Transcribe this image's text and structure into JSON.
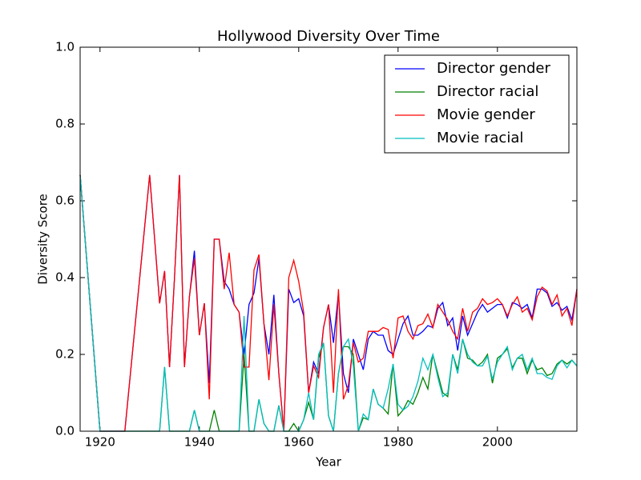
{
  "chart_data": {
    "type": "line",
    "title": "Hollywood Diversity Over Time",
    "x_label": "Year",
    "y_label": "Diversity Score",
    "xlim": [
      1916,
      2016
    ],
    "ylim": [
      0,
      1
    ],
    "xticks": [
      1920,
      1940,
      1960,
      1980,
      2000
    ],
    "yticks": [
      {
        "value": 0,
        "label": "0.0"
      },
      {
        "value": 0.2,
        "label": "0.2"
      },
      {
        "value": 0.4,
        "label": "0.4"
      },
      {
        "value": 0.6,
        "label": "0.6"
      },
      {
        "value": 0.8,
        "label": "0.8"
      },
      {
        "value": 1,
        "label": "1.0"
      }
    ],
    "legend": "upper right",
    "x": [
      1916,
      1920,
      1925,
      1930,
      1931,
      1932,
      1933,
      1934,
      1935,
      1936,
      1937,
      1938,
      1939,
      1940,
      1941,
      1942,
      1943,
      1944,
      1945,
      1946,
      1947,
      1948,
      1949,
      1950,
      1951,
      1952,
      1953,
      1954,
      1955,
      1956,
      1957,
      1958,
      1959,
      1960,
      1961,
      1962,
      1963,
      1964,
      1965,
      1966,
      1967,
      1968,
      1969,
      1970,
      1971,
      1972,
      1973,
      1974,
      1975,
      1976,
      1977,
      1978,
      1979,
      1980,
      1981,
      1982,
      1983,
      1984,
      1985,
      1986,
      1987,
      1988,
      1989,
      1990,
      1991,
      1992,
      1993,
      1994,
      1995,
      1996,
      1997,
      1998,
      1999,
      2000,
      2001,
      2002,
      2003,
      2004,
      2005,
      2006,
      2007,
      2008,
      2009,
      2010,
      2011,
      2012,
      2013,
      2014,
      2015,
      2016
    ],
    "series": [
      {
        "name": "Director gender",
        "color": "#0000ff",
        "values": [
          0.667,
          0,
          0,
          0.667,
          0.5,
          0.333,
          0.417,
          0.167,
          0.4,
          0.667,
          0.167,
          0.35,
          0.47,
          0.25,
          0.333,
          0.125,
          0.5,
          0.5,
          0.39,
          0.37,
          0.33,
          0.31,
          0.2,
          0.33,
          0.36,
          0.45,
          0.28,
          0.2,
          0.355,
          0.15,
          0,
          0.37,
          0.335,
          0.345,
          0.3,
          0.1,
          0.18,
          0.15,
          0.27,
          0.33,
          0.23,
          0.36,
          0.15,
          0.1,
          0.24,
          0.2,
          0.16,
          0.24,
          0.26,
          0.25,
          0.25,
          0.21,
          0.2,
          0.24,
          0.28,
          0.3,
          0.25,
          0.25,
          0.26,
          0.275,
          0.27,
          0.32,
          0.335,
          0.275,
          0.295,
          0.21,
          0.3,
          0.25,
          0.28,
          0.31,
          0.33,
          0.31,
          0.32,
          0.33,
          0.33,
          0.295,
          0.335,
          0.33,
          0.32,
          0.33,
          0.295,
          0.37,
          0.37,
          0.36,
          0.325,
          0.335,
          0.315,
          0.325,
          0.29,
          0.37
        ]
      },
      {
        "name": "Director racial",
        "color": "#008000",
        "values": [
          0.667,
          0,
          0,
          0,
          0,
          0,
          0.167,
          0,
          0,
          0,
          0,
          0,
          0.055,
          0,
          0,
          0,
          0.055,
          0,
          0,
          0,
          0,
          0,
          0.2,
          0,
          0,
          0.083,
          0.02,
          0,
          0,
          0.067,
          0,
          0,
          0.02,
          0,
          0.03,
          0.075,
          0.03,
          0.19,
          0.23,
          0.04,
          0,
          0.15,
          0.22,
          0.22,
          0.2,
          0,
          0.035,
          0.03,
          0.11,
          0.07,
          0.06,
          0.045,
          0.175,
          0.04,
          0.055,
          0.08,
          0.07,
          0.1,
          0.14,
          0.11,
          0.2,
          0.15,
          0.1,
          0.09,
          0.2,
          0.16,
          0.24,
          0.19,
          0.185,
          0.17,
          0.18,
          0.2,
          0.125,
          0.19,
          0.2,
          0.215,
          0.165,
          0.19,
          0.19,
          0.15,
          0.185,
          0.16,
          0.165,
          0.145,
          0.15,
          0.175,
          0.185,
          0.175,
          0.185,
          0.17
        ]
      },
      {
        "name": "Movie gender",
        "color": "#ff0000",
        "values": [
          0.667,
          0,
          0,
          0.667,
          0.5,
          0.333,
          0.417,
          0.167,
          0.4,
          0.667,
          0.167,
          0.35,
          0.45,
          0.25,
          0.333,
          0.083,
          0.5,
          0.5,
          0.37,
          0.465,
          0.33,
          0.31,
          0.167,
          0.167,
          0.42,
          0.46,
          0.28,
          0.133,
          0.33,
          0.15,
          0,
          0.4,
          0.445,
          0.39,
          0.31,
          0.1,
          0.17,
          0.14,
          0.27,
          0.33,
          0.1,
          0.37,
          0.083,
          0.12,
          0.23,
          0.18,
          0.19,
          0.26,
          0.26,
          0.26,
          0.27,
          0.265,
          0.19,
          0.295,
          0.3,
          0.26,
          0.24,
          0.275,
          0.28,
          0.305,
          0.27,
          0.33,
          0.31,
          0.29,
          0.26,
          0.24,
          0.32,
          0.26,
          0.31,
          0.32,
          0.345,
          0.33,
          0.335,
          0.345,
          0.33,
          0.3,
          0.33,
          0.35,
          0.31,
          0.32,
          0.29,
          0.35,
          0.375,
          0.365,
          0.33,
          0.355,
          0.3,
          0.32,
          0.275,
          0.37
        ]
      },
      {
        "name": "Movie racial",
        "color": "#00bfbf",
        "values": [
          0.667,
          0,
          0,
          0,
          0,
          0,
          0.167,
          0,
          0,
          0,
          0,
          0,
          0.055,
          0,
          0,
          0,
          0,
          0,
          0,
          0,
          0,
          0,
          0.3,
          0,
          0,
          0.083,
          0.02,
          0,
          0,
          0.067,
          0,
          0,
          0,
          0,
          0.03,
          0.1,
          0.03,
          0.2,
          0.23,
          0.04,
          0,
          0.15,
          0.22,
          0.24,
          0.17,
          0,
          0.045,
          0.03,
          0.11,
          0.07,
          0.06,
          0.11,
          0.175,
          0.07,
          0.055,
          0.065,
          0.09,
          0.13,
          0.19,
          0.16,
          0.2,
          0.14,
          0.09,
          0.1,
          0.2,
          0.15,
          0.24,
          0.2,
          0.18,
          0.17,
          0.17,
          0.195,
          0.135,
          0.18,
          0.2,
          0.22,
          0.16,
          0.19,
          0.2,
          0.16,
          0.19,
          0.15,
          0.15,
          0.14,
          0.135,
          0.17,
          0.185,
          0.165,
          0.185,
          0.17
        ]
      }
    ]
  }
}
